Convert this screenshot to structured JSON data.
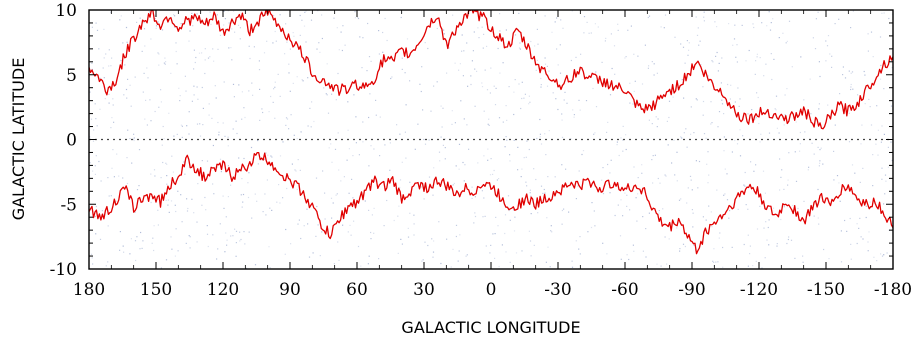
{
  "chart_data": {
    "type": "line",
    "xlabel": "GALACTIC LONGITUDE",
    "ylabel": "GALACTIC LATITUDE",
    "xlim": [
      180,
      -180
    ],
    "ylim": [
      -10,
      10
    ],
    "x_ticks": [
      180,
      150,
      120,
      90,
      60,
      30,
      0,
      -30,
      -60,
      -90,
      -120,
      -150,
      -180
    ],
    "x_tick_labels": [
      "180",
      "150",
      "120",
      "90",
      "60",
      "30",
      "0",
      "-30",
      "-60",
      "-90",
      "-120",
      "-150",
      "-180"
    ],
    "y_ticks": [
      -10,
      -5,
      0,
      5,
      10
    ],
    "y_tick_labels": [
      "-10",
      "-5",
      "0",
      "5",
      "10"
    ],
    "reference_line": {
      "y": 0,
      "style": "dotted"
    },
    "colors": {
      "contour": "#e00000",
      "background_dots": "#8fa0c8",
      "frame": "#000000"
    },
    "series": [
      {
        "x": [
          180,
          176,
          172,
          168,
          164,
          160,
          156,
          152,
          148,
          144,
          140,
          136,
          132,
          128,
          124,
          120,
          116,
          112,
          108,
          104,
          100,
          96,
          92,
          88,
          84,
          80,
          76,
          72,
          68,
          64,
          60,
          56,
          52,
          48,
          44,
          40,
          36,
          32,
          28,
          24,
          20,
          16,
          12,
          8,
          4,
          0,
          -4,
          -8,
          -12,
          -16,
          -20,
          -24,
          -28,
          -32,
          -36,
          -40,
          -44,
          -48,
          -52,
          -56,
          -60,
          -64,
          -68,
          -72,
          -76,
          -80,
          -84,
          -88,
          -92,
          -96,
          -100,
          -104,
          -108,
          -112,
          -116,
          -120,
          -124,
          -128,
          -132,
          -136,
          -140,
          -144,
          -148,
          -152,
          -156,
          -160,
          -164,
          -168,
          -172,
          -176,
          -180
        ],
        "values": [
          5.5,
          4.8,
          3.8,
          4.5,
          6.5,
          7.8,
          9.0,
          9.8,
          8.8,
          9.6,
          8.6,
          9.2,
          9.4,
          8.8,
          9.5,
          8.2,
          9.0,
          9.6,
          8.4,
          9.2,
          9.8,
          9.0,
          8.2,
          7.4,
          6.5,
          5.2,
          4.6,
          4.2,
          3.8,
          3.9,
          4.3,
          4.0,
          4.8,
          6.2,
          6.0,
          6.8,
          6.6,
          7.6,
          8.8,
          9.6,
          7.2,
          8.5,
          9.4,
          9.8,
          9.5,
          8.6,
          7.8,
          7.2,
          8.4,
          7.2,
          6.0,
          5.2,
          4.6,
          4.2,
          4.8,
          5.4,
          4.8,
          4.6,
          4.4,
          4.0,
          3.8,
          2.8,
          2.2,
          2.5,
          3.2,
          3.8,
          4.2,
          5.0,
          6.0,
          5.0,
          4.0,
          3.6,
          2.4,
          1.8,
          1.6,
          2.0,
          2.2,
          1.8,
          1.6,
          1.8,
          2.2,
          1.5,
          0.8,
          1.8,
          2.6,
          2.2,
          2.8,
          3.8,
          4.8,
          5.8,
          6.4
        ]
      },
      {
        "x": [
          180,
          176,
          172,
          168,
          164,
          160,
          156,
          152,
          148,
          144,
          140,
          136,
          132,
          128,
          124,
          120,
          116,
          112,
          108,
          104,
          100,
          96,
          92,
          88,
          84,
          80,
          76,
          72,
          68,
          64,
          60,
          56,
          52,
          48,
          44,
          40,
          36,
          32,
          28,
          24,
          20,
          16,
          12,
          8,
          4,
          0,
          -4,
          -8,
          -12,
          -16,
          -20,
          -24,
          -28,
          -32,
          -36,
          -40,
          -44,
          -48,
          -52,
          -56,
          -60,
          -64,
          -68,
          -72,
          -76,
          -80,
          -84,
          -88,
          -92,
          -96,
          -100,
          -104,
          -108,
          -112,
          -116,
          -120,
          -124,
          -128,
          -132,
          -136,
          -140,
          -144,
          -148,
          -152,
          -156,
          -160,
          -164,
          -168,
          -172,
          -176,
          -180
        ],
        "values": [
          -5.2,
          -6.0,
          -5.6,
          -4.8,
          -3.8,
          -5.2,
          -4.6,
          -4.2,
          -4.8,
          -3.6,
          -2.8,
          -1.6,
          -2.2,
          -3.0,
          -2.4,
          -2.0,
          -2.8,
          -2.4,
          -1.8,
          -1.2,
          -1.6,
          -2.2,
          -3.0,
          -3.4,
          -4.2,
          -5.2,
          -6.6,
          -7.4,
          -6.2,
          -5.2,
          -4.8,
          -4.0,
          -3.2,
          -3.6,
          -3.2,
          -4.6,
          -4.0,
          -3.4,
          -3.8,
          -3.2,
          -3.6,
          -4.2,
          -3.8,
          -4.0,
          -3.5,
          -3.6,
          -4.4,
          -5.2,
          -5.0,
          -4.6,
          -5.0,
          -4.6,
          -4.2,
          -3.8,
          -3.4,
          -3.6,
          -3.2,
          -3.8,
          -3.6,
          -3.2,
          -4.0,
          -3.6,
          -3.8,
          -5.2,
          -6.4,
          -6.8,
          -6.2,
          -7.4,
          -8.6,
          -7.2,
          -6.4,
          -5.8,
          -5.0,
          -4.2,
          -3.6,
          -4.2,
          -5.4,
          -6.0,
          -4.8,
          -5.4,
          -6.4,
          -5.2,
          -4.4,
          -5.2,
          -4.0,
          -3.6,
          -4.6,
          -5.0,
          -4.8,
          -5.6,
          -6.8
        ]
      }
    ]
  }
}
